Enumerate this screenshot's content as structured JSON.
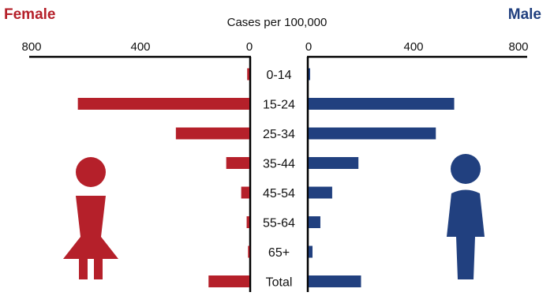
{
  "chart_data": {
    "type": "bar",
    "title": "Cases per 100,000",
    "categories": [
      "0-14",
      "15-24",
      "25-34",
      "35-44",
      "45-54",
      "55-64",
      "65+",
      "Total"
    ],
    "series": [
      {
        "name": "Female",
        "values": [
          8,
          630,
          270,
          85,
          30,
          10,
          5,
          150
        ],
        "color": "#b5202a"
      },
      {
        "name": "Male",
        "values": [
          6,
          555,
          485,
          190,
          90,
          45,
          15,
          200
        ],
        "color": "#21407f"
      }
    ],
    "xlim": [
      0,
      800
    ],
    "ticks": [
      "800",
      "400",
      "0"
    ],
    "ticks_right": [
      "0",
      "400",
      "800"
    ],
    "grid": false,
    "legend": "top-left and top-right labels",
    "icons": [
      "female-figure-icon",
      "male-figure-icon"
    ]
  }
}
